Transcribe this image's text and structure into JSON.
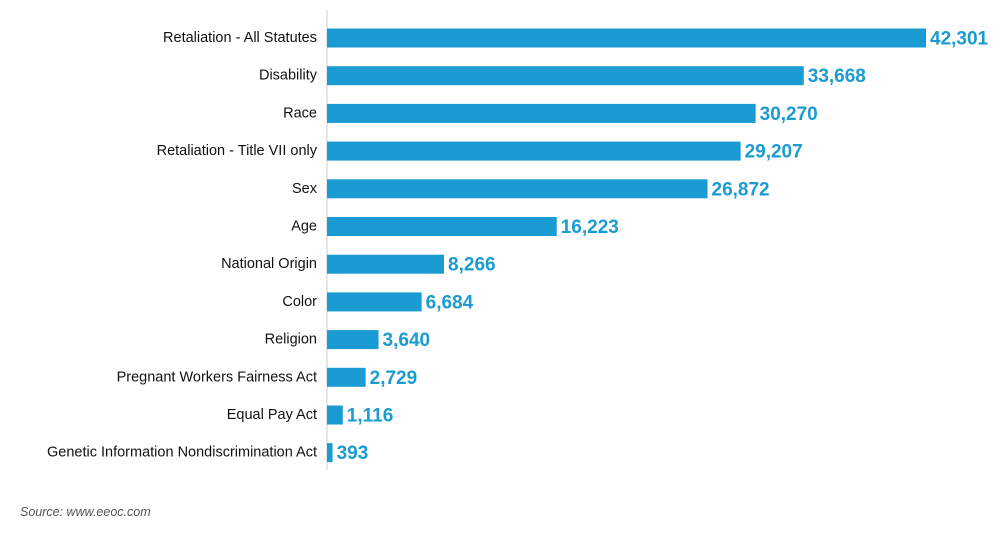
{
  "chart_data": {
    "type": "bar",
    "orientation": "horizontal",
    "categories": [
      "Retaliation - All Statutes",
      "Disability",
      "Race",
      "Retaliation - Title VII only",
      "Sex",
      "Age",
      "National Origin",
      "Color",
      "Religion",
      "Pregnant Workers Fairness Act",
      "Equal Pay Act",
      "Genetic Information Nondiscrimination Act"
    ],
    "values": [
      42301,
      33668,
      30270,
      29207,
      26872,
      16223,
      8266,
      6684,
      3640,
      2729,
      1116,
      393
    ],
    "value_labels": [
      "42,301",
      "33,668",
      "30,270",
      "29,207",
      "26,872",
      "16,223",
      "8,266",
      "6,684",
      "3,640",
      "2,729",
      "1,116",
      "393"
    ],
    "title": "",
    "xlabel": "",
    "ylabel": "",
    "xlim": [
      0,
      42301
    ],
    "grid": false,
    "legend": "none",
    "colors": {
      "bar": "#1a9bd1",
      "value_label": "#1a9bd1",
      "axis": "#cccccc"
    }
  },
  "source": "Source: www.eeoc.com"
}
